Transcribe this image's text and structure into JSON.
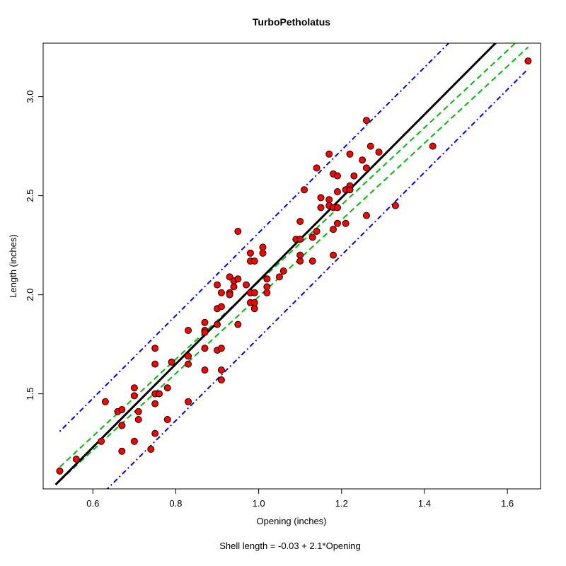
{
  "chart_data": {
    "type": "scatter",
    "title": "TurboPetholatus",
    "xlabel": "Opening (inches)",
    "ylabel": "Length (inches)",
    "caption": "Shell length = -0.03 + 2.1*Opening",
    "xlim": [
      0.48,
      1.68
    ],
    "ylim": [
      1.02,
      3.27
    ],
    "x_ticks": [
      0.6,
      0.8,
      1.0,
      1.2,
      1.4,
      1.6
    ],
    "x_tick_labels": [
      "0.6",
      "0.8",
      "1.0",
      "1.2",
      "1.4",
      "1.6"
    ],
    "y_ticks": [
      1.5,
      2.0,
      2.5,
      3.0
    ],
    "y_tick_labels": [
      "1.5",
      "2.0",
      "2.5",
      "3.0"
    ],
    "grid": false,
    "legend": "none",
    "colors": {
      "point_fill": "#ff0000",
      "point_stroke": "#000000",
      "fit_line": "#000000",
      "confidence_band": "#00bb00",
      "prediction_band": "#0000ee"
    },
    "fit_line": {
      "intercept": -0.03,
      "slope": 2.1,
      "x_range": [
        0.51,
        1.67
      ]
    },
    "confidence_band": {
      "x": [
        0.52,
        1.65
      ],
      "lower": [
        1.06,
        3.25
      ],
      "upper": [
        1.13,
        3.33
      ]
    },
    "prediction_band": {
      "x": [
        0.52,
        1.65
      ],
      "lower": [
        0.78,
        3.14
      ],
      "upper": [
        1.31,
        3.67
      ]
    },
    "points": [
      [
        0.52,
        1.11
      ],
      [
        0.56,
        1.17
      ],
      [
        0.62,
        1.26
      ],
      [
        0.63,
        1.46
      ],
      [
        0.66,
        1.41
      ],
      [
        0.67,
        1.42
      ],
      [
        0.67,
        1.34
      ],
      [
        0.67,
        1.34
      ],
      [
        0.67,
        1.21
      ],
      [
        0.7,
        1.53
      ],
      [
        0.7,
        1.49
      ],
      [
        0.7,
        1.26
      ],
      [
        0.71,
        1.41
      ],
      [
        0.71,
        1.37
      ],
      [
        0.74,
        1.22
      ],
      [
        0.75,
        1.73
      ],
      [
        0.75,
        1.65
      ],
      [
        0.75,
        1.5
      ],
      [
        0.75,
        1.45
      ],
      [
        0.75,
        1.3
      ],
      [
        0.76,
        1.5
      ],
      [
        0.78,
        1.53
      ],
      [
        0.78,
        1.37
      ],
      [
        0.79,
        1.66
      ],
      [
        0.83,
        1.82
      ],
      [
        0.83,
        1.69
      ],
      [
        0.83,
        1.65
      ],
      [
        0.83,
        1.46
      ],
      [
        0.87,
        1.86
      ],
      [
        0.87,
        1.82
      ],
      [
        0.87,
        1.81
      ],
      [
        0.87,
        1.73
      ],
      [
        0.87,
        1.62
      ],
      [
        0.9,
        2.05
      ],
      [
        0.9,
        1.93
      ],
      [
        0.9,
        1.85
      ],
      [
        0.9,
        1.72
      ],
      [
        0.91,
        1.73
      ],
      [
        0.91,
        1.57
      ],
      [
        0.91,
        2.01
      ],
      [
        0.91,
        1.94
      ],
      [
        0.91,
        1.62
      ],
      [
        0.93,
        2.09
      ],
      [
        0.93,
        2.01
      ],
      [
        0.93,
        2.0
      ],
      [
        0.94,
        2.07
      ],
      [
        0.94,
        2.04
      ],
      [
        0.95,
        2.08
      ],
      [
        0.95,
        1.85
      ],
      [
        0.95,
        2.32
      ],
      [
        0.97,
        2.05
      ],
      [
        0.98,
        2.21
      ],
      [
        0.98,
        2.17
      ],
      [
        0.98,
        2.01
      ],
      [
        0.98,
        1.96
      ],
      [
        0.99,
        2.01
      ],
      [
        0.99,
        1.96
      ],
      [
        0.99,
        1.93
      ],
      [
        0.99,
        2.17
      ],
      [
        1.01,
        2.24
      ],
      [
        1.01,
        2.21
      ],
      [
        1.02,
        2.08
      ],
      [
        1.02,
        2.04
      ],
      [
        1.02,
        2.01
      ],
      [
        1.05,
        2.09
      ],
      [
        1.06,
        2.12
      ],
      [
        1.09,
        2.28
      ],
      [
        1.1,
        2.37
      ],
      [
        1.1,
        2.2
      ],
      [
        1.1,
        2.17
      ],
      [
        1.1,
        2.28
      ],
      [
        1.11,
        2.53
      ],
      [
        1.13,
        2.17
      ],
      [
        1.13,
        2.29
      ],
      [
        1.14,
        2.32
      ],
      [
        1.14,
        2.64
      ],
      [
        1.15,
        2.49
      ],
      [
        1.15,
        2.44
      ],
      [
        1.17,
        2.71
      ],
      [
        1.17,
        2.48
      ],
      [
        1.17,
        2.45
      ],
      [
        1.18,
        2.61
      ],
      [
        1.18,
        2.44
      ],
      [
        1.18,
        2.33
      ],
      [
        1.18,
        2.2
      ],
      [
        1.19,
        2.6
      ],
      [
        1.19,
        2.52
      ],
      [
        1.19,
        2.44
      ],
      [
        1.19,
        2.36
      ],
      [
        1.21,
        2.53
      ],
      [
        1.21,
        2.36
      ],
      [
        1.22,
        2.71
      ],
      [
        1.22,
        2.55
      ],
      [
        1.22,
        2.53
      ],
      [
        1.23,
        2.6
      ],
      [
        1.25,
        2.68
      ],
      [
        1.26,
        2.64
      ],
      [
        1.26,
        2.4
      ],
      [
        1.26,
        2.88
      ],
      [
        1.27,
        2.75
      ],
      [
        1.29,
        2.72
      ],
      [
        1.33,
        2.45
      ],
      [
        1.42,
        2.75
      ],
      [
        1.65,
        3.18
      ]
    ]
  }
}
